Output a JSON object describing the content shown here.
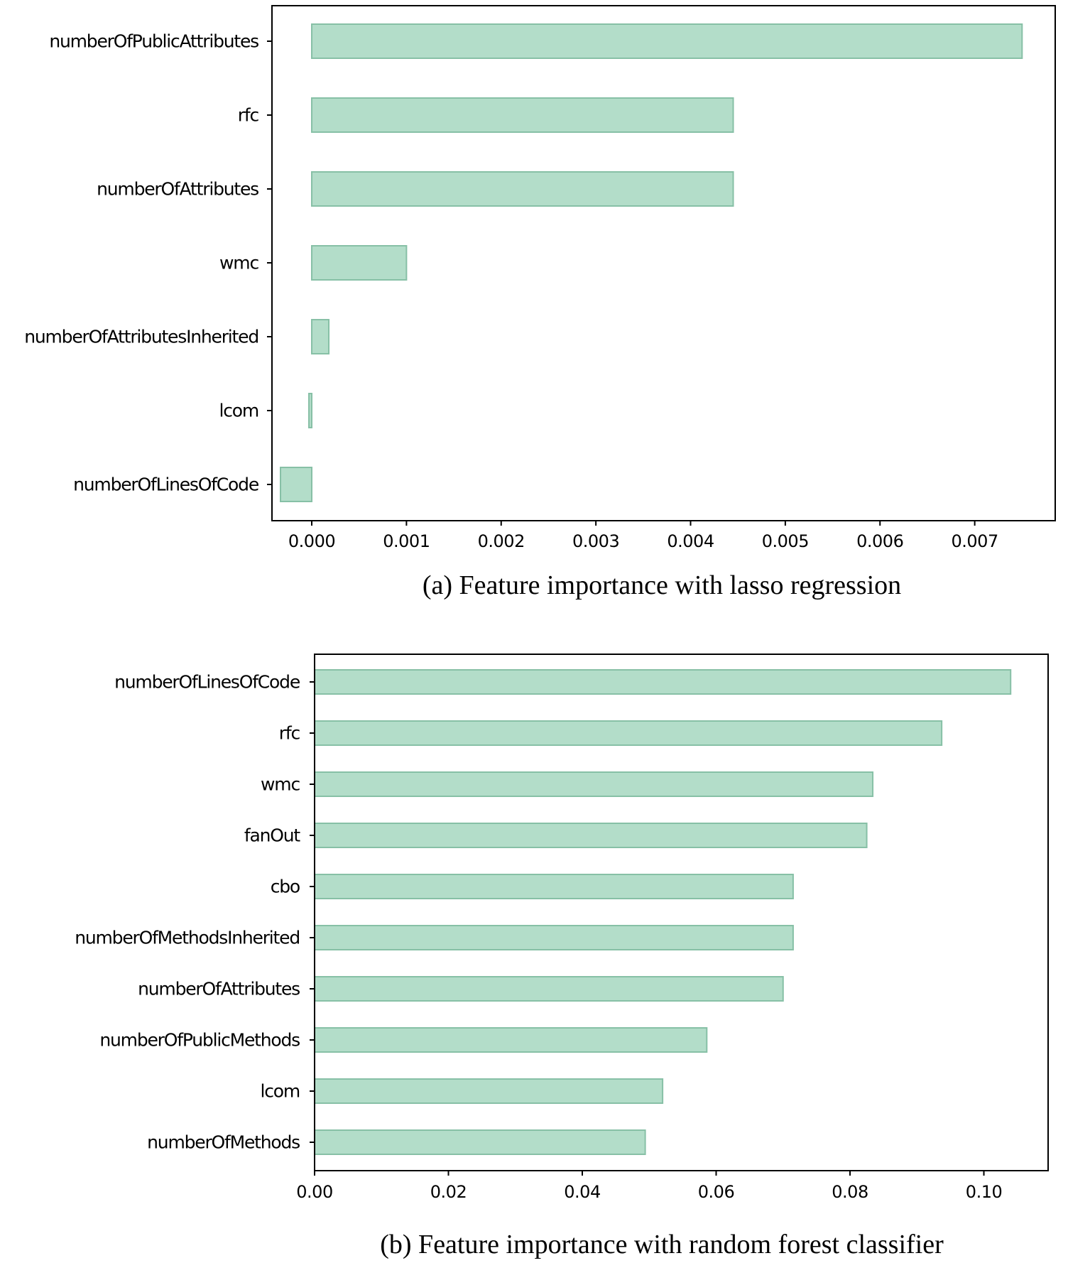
{
  "chart_data": [
    {
      "type": "bar",
      "orientation": "horizontal",
      "caption": "(a) Feature importance with lasso regression",
      "categories": [
        "numberOfPublicAttributes",
        "rfc",
        "numberOfAttributes",
        "wmc",
        "numberOfAttributesInherited",
        "lcom",
        "numberOfLinesOfCode"
      ],
      "values": [
        0.0075,
        0.00445,
        0.00445,
        0.001,
        0.00018,
        -3e-05,
        -0.00033
      ],
      "xlim": [
        -0.00042,
        0.00785
      ],
      "xticks": [
        0.0,
        0.001,
        0.002,
        0.003,
        0.004,
        0.005,
        0.006,
        0.007
      ],
      "xtick_labels": [
        "0.000",
        "0.001",
        "0.002",
        "0.003",
        "0.004",
        "0.005",
        "0.006",
        "0.007"
      ],
      "grid": false,
      "bar_color": "#b3ddc9",
      "bar_edge_color": "#87c0a6"
    },
    {
      "type": "bar",
      "orientation": "horizontal",
      "caption": "(b) Feature importance with random forest classifier",
      "categories": [
        "numberOfLinesOfCode",
        "rfc",
        "wmc",
        "fanOut",
        "cbo",
        "numberOfMethodsInherited",
        "numberOfAttributes",
        "numberOfPublicMethods",
        "lcom",
        "numberOfMethods"
      ],
      "values": [
        0.104,
        0.0937,
        0.0834,
        0.0825,
        0.0715,
        0.0715,
        0.07,
        0.0586,
        0.052,
        0.0494
      ],
      "xlim": [
        0.0,
        0.1096
      ],
      "xticks": [
        0.0,
        0.02,
        0.04,
        0.06,
        0.08,
        0.1
      ],
      "xtick_labels": [
        "0.00",
        "0.02",
        "0.04",
        "0.06",
        "0.08",
        "0.10"
      ],
      "grid": false,
      "bar_color": "#b3ddc9",
      "bar_edge_color": "#87c0a6"
    }
  ]
}
